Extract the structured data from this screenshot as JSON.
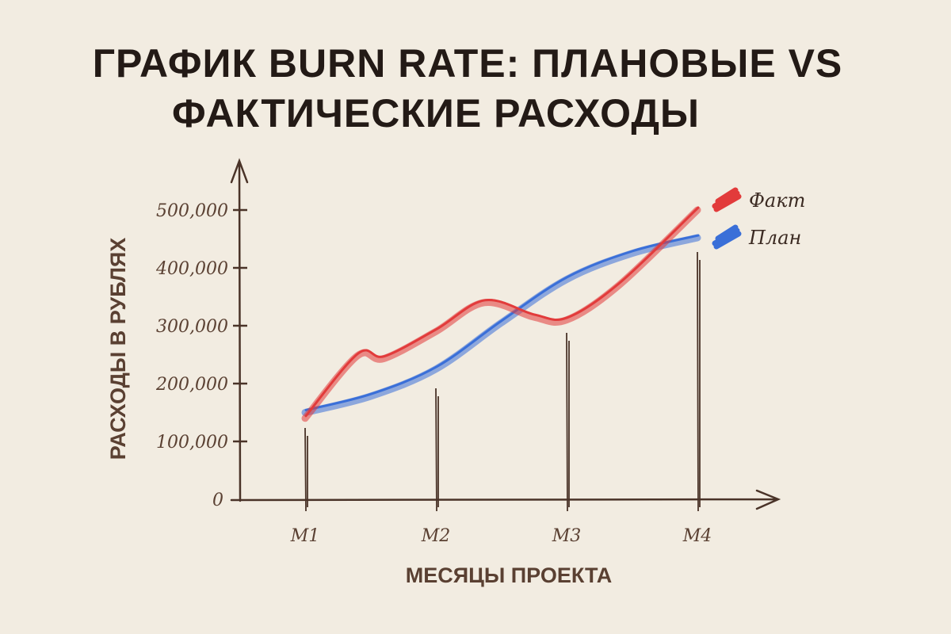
{
  "chart_data": {
    "type": "line",
    "title": "ГРАФИК BURN RATE: ПЛАНОВЫЕ VS ФАКТИЧЕСКИЕ РАСХОДЫ",
    "title_lines": [
      "ГРАФИК BURN RATE: ПЛАНОВЫЕ VS",
      "ФАКТИЧЕСКИЕ РАСХОДЫ"
    ],
    "xlabel": "МЕСЯЦЫ ПРОЕКТА",
    "ylabel": "РАСХОДЫ В РУБЛЯХ",
    "categories": [
      "M1",
      "M2",
      "M3",
      "M4"
    ],
    "yticks": [
      "0",
      "100,000",
      "200,000",
      "300,000",
      "400,000",
      "500,000"
    ],
    "ytick_values": [
      0,
      100000,
      200000,
      300000,
      400000,
      500000
    ],
    "ylim": [
      0,
      500000
    ],
    "legend_position": "top-right",
    "series": [
      {
        "name": "Факт",
        "color": "#e23b3b",
        "x": [
          1,
          1.4,
          1.6,
          2,
          2.37,
          2.75,
          3,
          3.4,
          4
        ],
        "values": [
          140000,
          248000,
          243000,
          290000,
          340000,
          315000,
          310000,
          370000,
          500000
        ]
      },
      {
        "name": "План",
        "color": "#3a6fd8",
        "x": [
          1,
          1.5,
          2,
          2.5,
          3,
          3.5,
          4
        ],
        "values": [
          150000,
          178000,
          225000,
          305000,
          380000,
          425000,
          452000
        ]
      }
    ],
    "grid": false
  }
}
